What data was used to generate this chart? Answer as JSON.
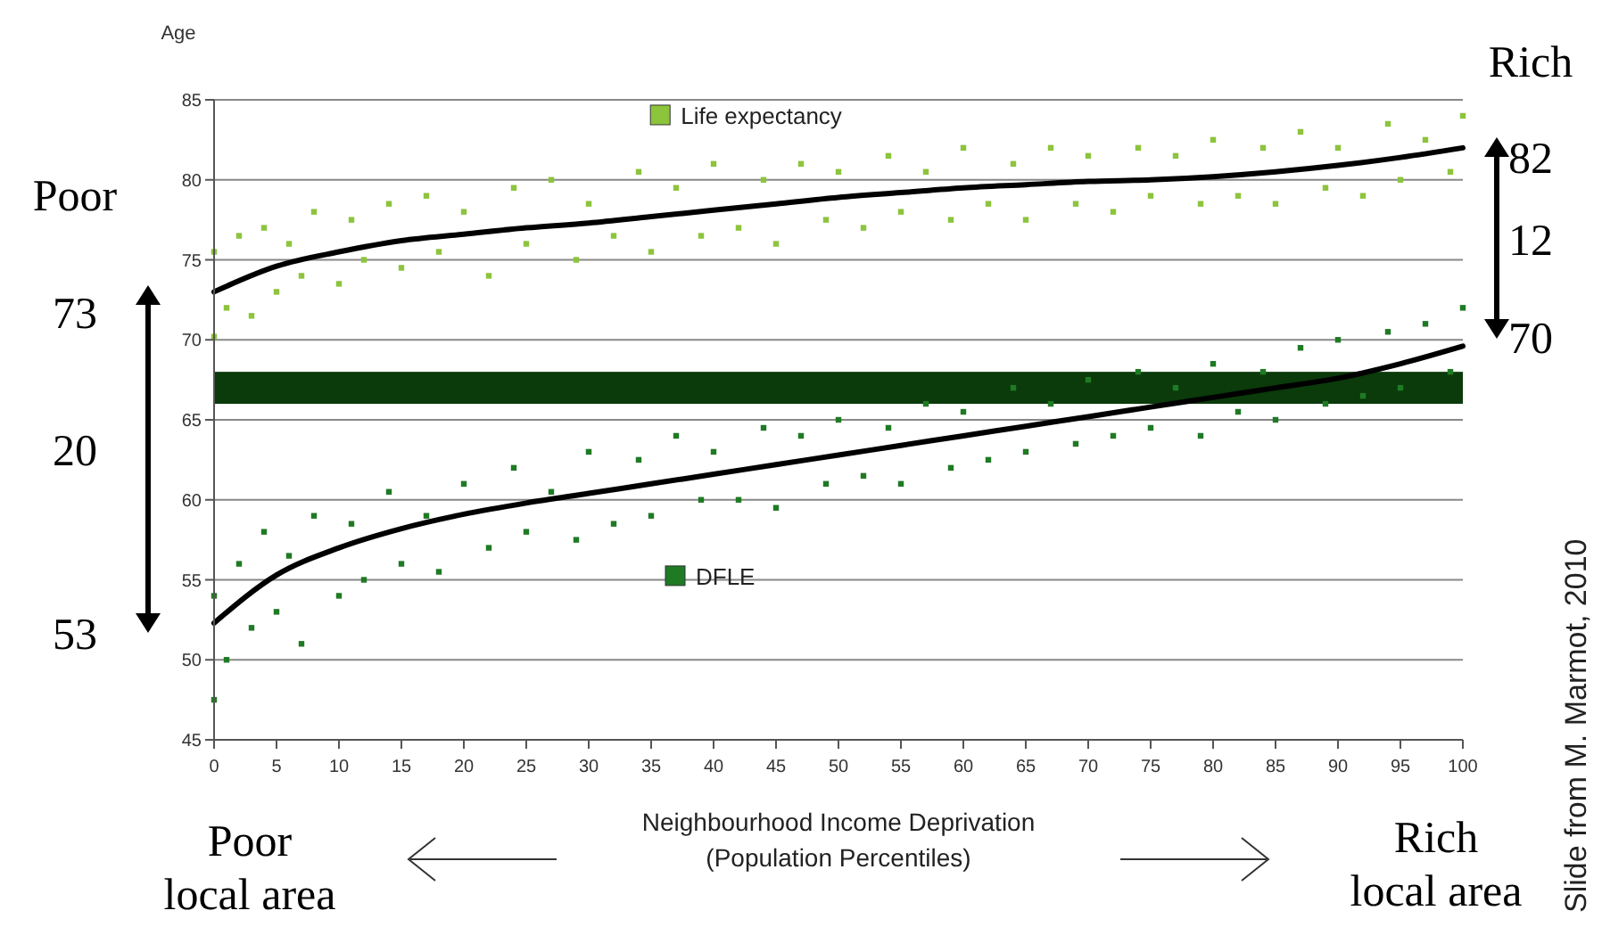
{
  "chart_data": {
    "type": "scatter",
    "ylabel": "Age",
    "xlabel": "Neighbourhood Income Deprivation\n(Population Percentiles)",
    "xlim": [
      0,
      100
    ],
    "xticks": [
      0,
      5,
      10,
      15,
      20,
      25,
      30,
      35,
      40,
      45,
      50,
      55,
      60,
      65,
      70,
      75,
      80,
      85,
      90,
      95,
      100
    ],
    "ylim": [
      45,
      85
    ],
    "yticks": [
      45,
      50,
      55,
      60,
      65,
      70,
      75,
      80,
      85
    ],
    "grid": "y",
    "legend": "top",
    "x": [
      0,
      0,
      1,
      2,
      3,
      4,
      5,
      6,
      7,
      8,
      10,
      11,
      12,
      14,
      15,
      17,
      18,
      20,
      22,
      24,
      25,
      27,
      29,
      30,
      32,
      34,
      35,
      37,
      39,
      40,
      42,
      44,
      45,
      47,
      49,
      50,
      52,
      54,
      55,
      57,
      59,
      60,
      62,
      64,
      65,
      67,
      69,
      70,
      72,
      74,
      75,
      77,
      79,
      80,
      82,
      84,
      85,
      87,
      89,
      90,
      92,
      94,
      95,
      97,
      99,
      100
    ],
    "bands": [
      {
        "axis": "y",
        "from": 66,
        "to": 68,
        "color": "#0b3a0b"
      }
    ],
    "series": [
      {
        "name": "Life expectancy",
        "marker": "square",
        "color": "#8cc43c",
        "values": [
          70.2,
          75.5,
          72,
          76.5,
          71.5,
          77,
          73,
          76,
          74,
          78,
          73.5,
          77.5,
          75,
          78.5,
          74.5,
          79,
          75.5,
          78,
          74,
          79.5,
          76,
          80,
          75,
          78.5,
          76.5,
          80.5,
          75.5,
          79.5,
          76.5,
          81,
          77,
          80,
          76,
          81,
          77.5,
          80.5,
          77,
          81.5,
          78,
          80.5,
          77.5,
          82,
          78.5,
          81,
          77.5,
          82,
          78.5,
          81.5,
          78,
          82,
          79,
          81.5,
          78.5,
          82.5,
          79,
          82,
          78.5,
          83,
          79.5,
          82,
          79,
          83.5,
          80,
          82.5,
          80.5,
          84
        ]
      },
      {
        "name": "DFLE",
        "marker": "square",
        "color": "#1f7a24",
        "values": [
          47.5,
          54,
          50,
          56,
          52,
          58,
          53,
          56.5,
          51,
          59,
          54,
          58.5,
          55,
          60.5,
          56,
          59,
          55.5,
          61,
          57,
          62,
          58,
          60.5,
          57.5,
          63,
          58.5,
          62.5,
          59,
          64,
          60,
          63,
          60,
          64.5,
          59.5,
          64,
          61,
          65,
          61.5,
          64.5,
          61,
          66,
          62,
          65.5,
          62.5,
          67,
          63,
          66,
          63.5,
          67.5,
          64,
          68,
          64.5,
          67,
          64,
          68.5,
          65.5,
          68,
          65,
          69.5,
          66,
          70,
          66.5,
          70.5,
          67,
          71,
          68,
          72
        ]
      },
      {
        "type": "line",
        "marker": "none",
        "line_style": "solid",
        "color": "#000000",
        "x": [
          0,
          5,
          10,
          15,
          20,
          25,
          30,
          35,
          40,
          45,
          50,
          55,
          60,
          65,
          70,
          75,
          80,
          85,
          90,
          95,
          100
        ],
        "values": [
          73,
          74.6,
          75.5,
          76.2,
          76.6,
          77,
          77.3,
          77.7,
          78.1,
          78.5,
          78.9,
          79.2,
          79.5,
          79.7,
          79.9,
          80,
          80.2,
          80.5,
          80.9,
          81.4,
          82
        ]
      },
      {
        "type": "line",
        "marker": "none",
        "line_style": "solid",
        "color": "#000000",
        "x": [
          0,
          5,
          10,
          15,
          20,
          25,
          30,
          35,
          40,
          45,
          50,
          55,
          60,
          65,
          70,
          75,
          80,
          85,
          90,
          95,
          100
        ],
        "values": [
          52.3,
          55.3,
          57,
          58.2,
          59.1,
          59.8,
          60.4,
          61,
          61.6,
          62.2,
          62.8,
          63.4,
          64,
          64.6,
          65.2,
          65.8,
          66.4,
          67,
          67.6,
          68.5,
          69.6
        ]
      }
    ],
    "annotations": [
      "Poor",
      "73",
      "20",
      "53",
      "Rich",
      "82",
      "12",
      "70",
      "Poor local area",
      "Rich local area",
      "Slide from M. Marmot, 2010"
    ]
  }
}
